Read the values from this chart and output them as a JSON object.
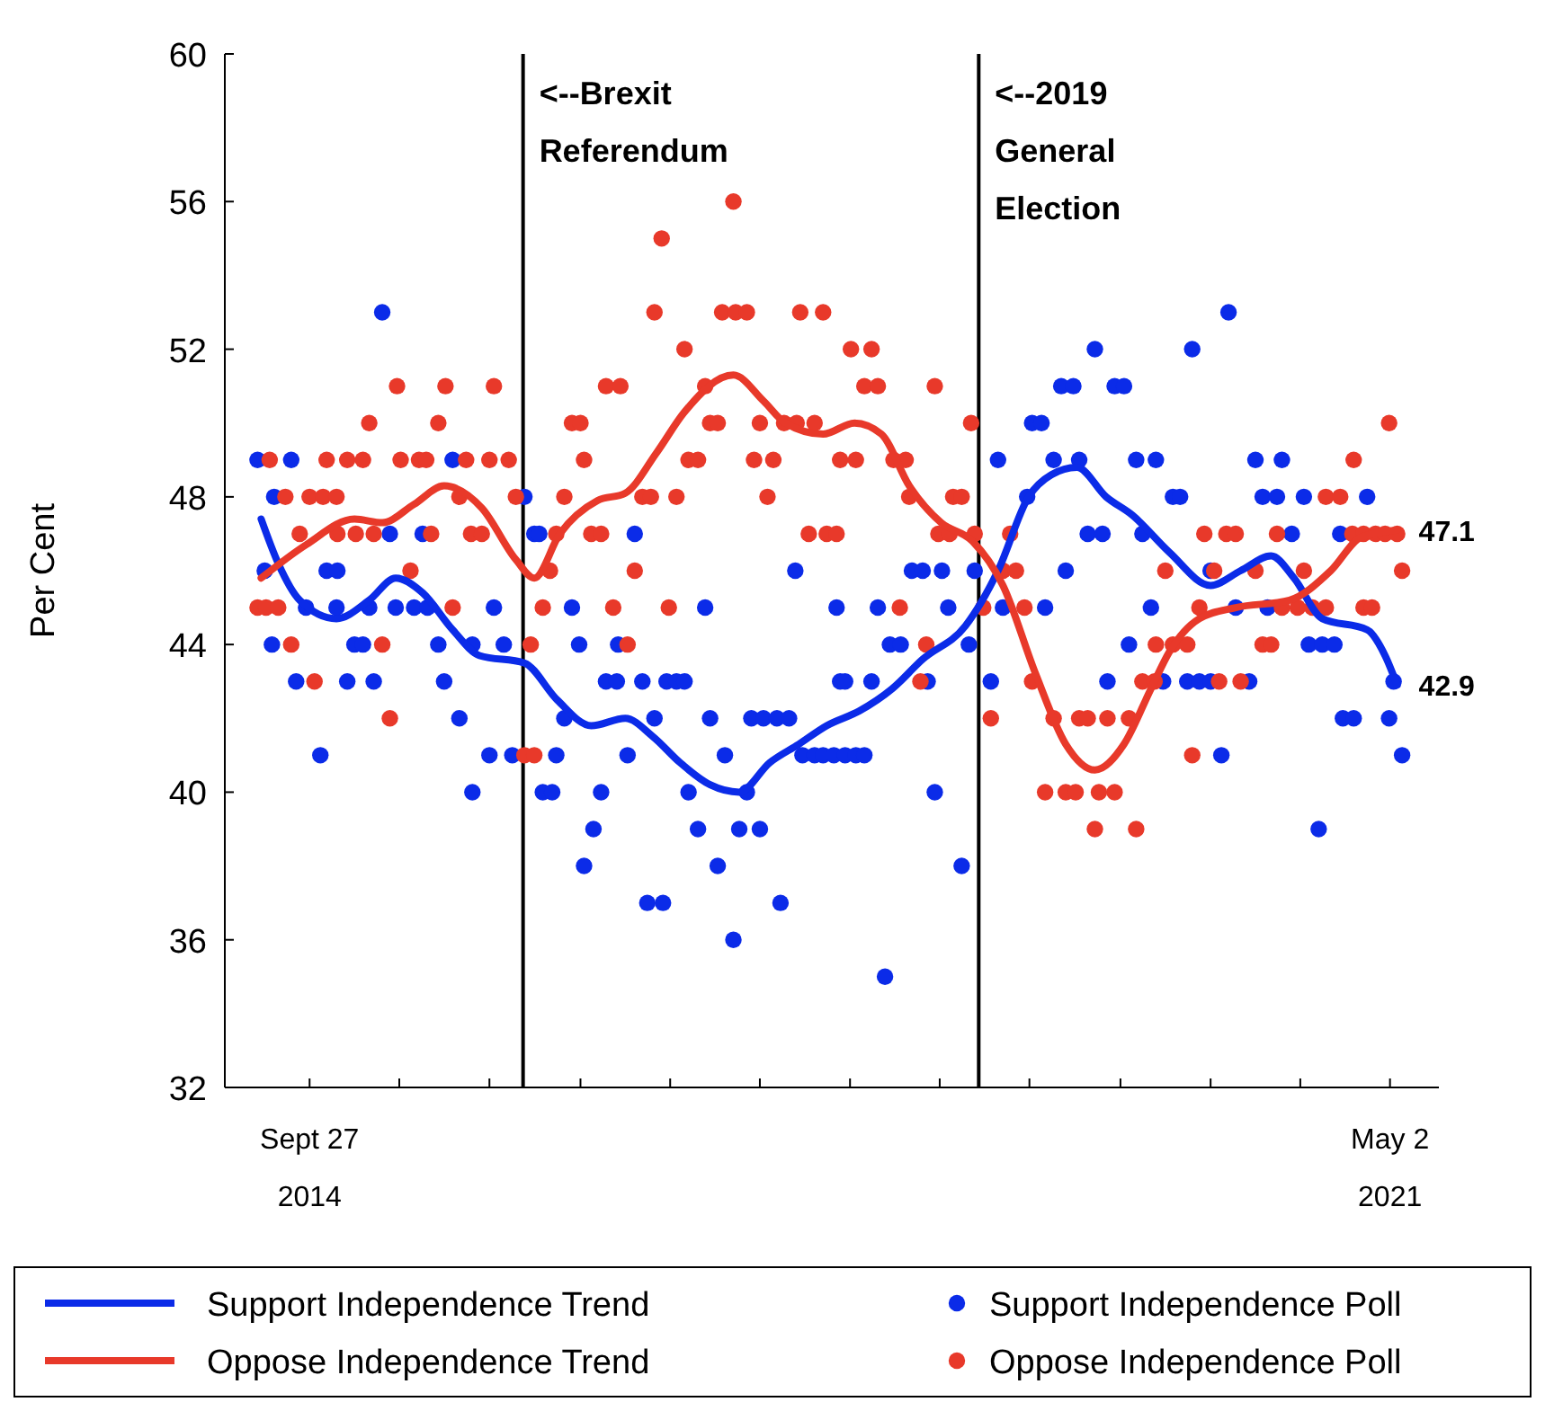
{
  "chart_data": {
    "type": "scatter",
    "ylabel": "Per Cent",
    "xlim": [
      "2014-03-22",
      "2021-08-19"
    ],
    "ylim": [
      32,
      60
    ],
    "yticks": [
      32,
      36,
      40,
      44,
      48,
      52,
      56,
      60
    ],
    "xticks": [
      {
        "value": "2014-09-27",
        "label": "Sept 27 2014"
      },
      {
        "value": "2015-04-15",
        "label": null
      },
      {
        "value": "2015-11-02",
        "label": null
      },
      {
        "value": "2016-05-23",
        "label": null
      },
      {
        "value": "2016-12-09",
        "label": null
      },
      {
        "value": "2017-06-27",
        "label": null
      },
      {
        "value": "2018-01-14",
        "label": null
      },
      {
        "value": "2018-08-02",
        "label": null
      },
      {
        "value": "2019-02-18",
        "label": null
      },
      {
        "value": "2019-09-09",
        "label": null
      },
      {
        "value": "2020-03-28",
        "label": null
      },
      {
        "value": "2020-10-14",
        "label": null
      },
      {
        "value": "2021-05-02",
        "label": "May 2 2021"
      }
    ],
    "legend": "bottom",
    "ref_lines": [
      {
        "axis": "x",
        "value": "2016-01-16",
        "label": "<--Brexit Referendum",
        "color": "#000000"
      },
      {
        "axis": "x",
        "value": "2018-10-28",
        "label": "<--2019 General Election",
        "color": "#000000"
      }
    ],
    "annotations": [
      {
        "text": "47.1",
        "x": "2021-05-18",
        "y": 47.1
      },
      {
        "text": "42.9",
        "x": "2021-05-18",
        "y": 42.9
      }
    ],
    "series": [
      {
        "name": "Support Independence Trend",
        "type": "line",
        "color": "#0b2be8",
        "line_style": "solid",
        "x": [
          "2014-06-11",
          "2014-07-19",
          "2014-09-05",
          "2014-11-26",
          "2015-02-07",
          "2015-04-07",
          "2015-06-06",
          "2015-08-12",
          "2015-10-11",
          "2016-01-19",
          "2016-04-01",
          "2016-06-16",
          "2016-08-31",
          "2016-11-01",
          "2016-12-31",
          "2017-03-08",
          "2017-05-12",
          "2017-07-19",
          "2017-09-22",
          "2017-11-23",
          "2018-02-04",
          "2018-04-18",
          "2018-06-25",
          "2018-09-28",
          "2018-12-10",
          "2019-02-16",
          "2019-04-08",
          "2019-06-04",
          "2019-08-08",
          "2019-10-06",
          "2019-12-27",
          "2020-03-28",
          "2020-06-03",
          "2020-08-10",
          "2020-09-30",
          "2020-12-02",
          "2021-03-12",
          "2021-04-21",
          "2021-05-18"
        ],
        "values": [
          47.4,
          46.2,
          45.2,
          44.7,
          45.2,
          45.8,
          45.4,
          44.4,
          43.7,
          43.5,
          42.5,
          41.8,
          42.0,
          41.5,
          40.8,
          40.2,
          40.0,
          40.8,
          41.3,
          41.8,
          42.2,
          42.8,
          43.6,
          44.5,
          46.0,
          48.0,
          48.6,
          48.8,
          48.0,
          47.5,
          46.5,
          45.6,
          46.0,
          46.4,
          45.8,
          44.7,
          44.4,
          43.7,
          42.9
        ]
      },
      {
        "name": "Oppose Independence Trend",
        "type": "line",
        "color": "#e8392a",
        "line_style": "solid",
        "x": [
          "2014-06-11",
          "2014-09-19",
          "2015-01-05",
          "2015-03-08",
          "2015-05-18",
          "2015-07-24",
          "2015-10-16",
          "2015-12-31",
          "2016-02-10",
          "2016-04-07",
          "2016-06-30",
          "2016-08-31",
          "2016-11-09",
          "2017-01-10",
          "2017-04-29",
          "2017-07-05",
          "2017-08-23",
          "2017-11-15",
          "2018-01-24",
          "2018-03-25",
          "2018-05-26",
          "2018-08-05",
          "2018-10-14",
          "2018-12-21",
          "2019-03-04",
          "2019-05-10",
          "2019-07-14",
          "2019-09-17",
          "2019-11-16",
          "2019-12-27",
          "2020-03-03",
          "2020-05-23",
          "2020-09-20",
          "2020-12-21",
          "2021-02-26",
          "2021-05-18"
        ],
        "values": [
          45.8,
          46.7,
          47.4,
          47.3,
          47.8,
          48.3,
          47.7,
          46.3,
          45.8,
          47.0,
          47.9,
          48.1,
          49.2,
          50.3,
          51.3,
          50.6,
          50.0,
          49.7,
          50.0,
          49.7,
          48.3,
          47.3,
          46.8,
          45.6,
          43.2,
          41.3,
          40.6,
          41.3,
          42.8,
          43.8,
          44.7,
          45.0,
          45.2,
          46.0,
          46.9,
          47.1
        ]
      },
      {
        "name": "Support Independence Poll",
        "type": "scatter",
        "marker": "circle",
        "color": "#0b2be8",
        "x": [
          "2015-03-08",
          "2014-06-03",
          "2014-08-17",
          "2015-08-12",
          "2014-07-10",
          "2016-01-19",
          "2015-03-25",
          "2015-06-06",
          "2014-06-19",
          "2014-11-04",
          "2014-11-28",
          "2014-09-19",
          "2014-11-26",
          "2015-02-07",
          "2015-04-07",
          "2015-05-18",
          "2015-06-17",
          "2015-11-12",
          "2014-07-05",
          "2015-01-05",
          "2015-01-24",
          "2015-07-11",
          "2015-09-25",
          "2015-12-04",
          "2014-08-28",
          "2014-12-20",
          "2015-02-17",
          "2015-07-24",
          "2015-08-27",
          "2014-10-21",
          "2015-11-02",
          "2015-12-23",
          "2015-09-25",
          "2016-02-10",
          "2016-02-21",
          "2016-09-21",
          "2017-09-14",
          "2016-05-04",
          "2017-02-25",
          "2017-12-15",
          "2016-05-20",
          "2016-08-15",
          "2016-07-19",
          "2016-08-12",
          "2016-10-08",
          "2016-12-01",
          "2016-12-23",
          "2017-01-10",
          "2017-12-23",
          "2016-04-17",
          "2016-11-04",
          "2017-03-08",
          "2017-06-08",
          "2017-07-05",
          "2017-08-04",
          "2017-08-31",
          "2016-03-30",
          "2016-09-05",
          "2017-04-10",
          "2017-09-30",
          "2017-10-27",
          "2017-11-15",
          "2017-12-09",
          "2016-02-29",
          "2016-03-21",
          "2016-07-08",
          "2017-01-19",
          "2017-05-29",
          "2016-06-21",
          "2017-02-09",
          "2017-05-12",
          "2017-06-27",
          "2016-05-31",
          "2017-03-25",
          "2016-10-19",
          "2016-11-23",
          "2017-08-12",
          "2017-04-29",
          "2019-07-14",
          "2019-04-30",
          "2019-05-27",
          "2019-08-27",
          "2019-09-17",
          "2019-02-24",
          "2019-03-17",
          "2018-12-10",
          "2019-04-13",
          "2019-06-09",
          "2019-10-14",
          "2019-02-13",
          "2019-06-28",
          "2019-07-31",
          "2019-10-28",
          "2018-06-01",
          "2018-06-25",
          "2018-08-07",
          "2018-10-19",
          "2019-05-10",
          "2018-03-17",
          "2018-08-21",
          "2018-12-21",
          "2019-03-25",
          "2018-04-13",
          "2018-05-07",
          "2018-10-06",
          "2019-09-28",
          "2018-01-03",
          "2018-03-03",
          "2018-07-06",
          "2018-11-24",
          "2019-08-11",
          "2018-01-03",
          "2018-01-27",
          "2018-02-15",
          "2018-07-22",
          "2018-09-20",
          "2018-04-02",
          "2020-05-07",
          "2020-02-16",
          "2019-11-27",
          "2020-07-06",
          "2020-09-03",
          "2020-01-04",
          "2020-01-20",
          "2020-07-22",
          "2020-08-23",
          "2020-10-22",
          "2021-03-12",
          "2020-09-25",
          "2021-01-11",
          "2020-03-28",
          "2019-11-16",
          "2020-05-23",
          "2020-08-02",
          "2020-11-02",
          "2020-12-02",
          "2020-12-29",
          "2019-12-13",
          "2020-02-05",
          "2020-03-03",
          "2020-03-28",
          "2020-06-22",
          "2021-05-10",
          "2021-01-17",
          "2021-02-10",
          "2021-04-30",
          "2020-04-21",
          "2021-05-29",
          "2020-11-24"
        ],
        "values": [
          53,
          49,
          49,
          49,
          48,
          48,
          47,
          47,
          46,
          46,
          46,
          45,
          45,
          45,
          45,
          45,
          45,
          45,
          44,
          44,
          44,
          44,
          44,
          44,
          43,
          43,
          43,
          43,
          42,
          41,
          41,
          41,
          40,
          47,
          47,
          47,
          46,
          45,
          45,
          45,
          44,
          44,
          43,
          43,
          43,
          43,
          43,
          43,
          43,
          42,
          42,
          42,
          42,
          42,
          42,
          42,
          41,
          41,
          41,
          41,
          41,
          41,
          41,
          40,
          40,
          40,
          40,
          40,
          39,
          39,
          39,
          39,
          38,
          38,
          37,
          37,
          37,
          36,
          52,
          51,
          51,
          51,
          51,
          50,
          50,
          49,
          49,
          49,
          49,
          48,
          47,
          47,
          47,
          46,
          46,
          46,
          46,
          46,
          45,
          45,
          45,
          45,
          44,
          44,
          44,
          44,
          43,
          43,
          43,
          43,
          43,
          41,
          41,
          41,
          40,
          38,
          35,
          53,
          52,
          49,
          49,
          49,
          48,
          48,
          48,
          48,
          48,
          48,
          47,
          47,
          46,
          45,
          45,
          45,
          44,
          44,
          44,
          43,
          43,
          43,
          43,
          43,
          43,
          42,
          42,
          42,
          41,
          41,
          39
        ]
      },
      {
        "name": "Oppose Independence Poll",
        "type": "scatter",
        "marker": "circle",
        "color": "#e8392a",
        "x": [
          "2015-04-10",
          "2015-07-27",
          "2015-11-12",
          "2015-02-07",
          "2015-07-11",
          "2014-06-30",
          "2014-11-04",
          "2014-12-20",
          "2015-01-24",
          "2015-04-18",
          "2015-05-29",
          "2015-06-14",
          "2015-09-11",
          "2015-11-02",
          "2015-12-15",
          "2014-08-04",
          "2014-09-27",
          "2014-10-27",
          "2014-11-26",
          "2015-08-27",
          "2015-12-31",
          "2014-09-05",
          "2014-11-28",
          "2015-01-08",
          "2015-02-17",
          "2015-06-25",
          "2015-09-22",
          "2015-10-16",
          "2015-05-10",
          "2014-06-03",
          "2014-06-22",
          "2014-07-19",
          "2015-08-12",
          "2014-08-17",
          "2015-03-08",
          "2014-10-08",
          "2015-03-25",
          "2016-01-19",
          "2016-02-10",
          "2017-04-29",
          "2016-11-20",
          "2016-11-04",
          "2017-04-04",
          "2017-05-04",
          "2017-05-29",
          "2017-09-25",
          "2017-11-15",
          "2017-01-10",
          "2018-01-16",
          "2018-03-03",
          "2016-07-19",
          "2016-08-20",
          "2017-02-25",
          "2018-02-15",
          "2018-03-17",
          "2018-07-22",
          "2016-05-04",
          "2016-05-23",
          "2017-03-08",
          "2017-03-25",
          "2017-06-27",
          "2017-08-20",
          "2017-09-17",
          "2017-10-27",
          "2018-10-11",
          "2016-05-31",
          "2017-01-19",
          "2017-02-09",
          "2017-06-14",
          "2017-07-27",
          "2017-12-23",
          "2018-01-27",
          "2018-04-21",
          "2018-05-18",
          "2016-04-17",
          "2016-10-08",
          "2016-10-27",
          "2016-12-23",
          "2017-07-14",
          "2018-05-26",
          "2018-09-01",
          "2018-09-20",
          "2016-03-30",
          "2016-06-16",
          "2016-07-08",
          "2017-10-14",
          "2017-11-23",
          "2017-12-15",
          "2018-07-30",
          "2018-08-24",
          "2018-10-19",
          "2019-01-06",
          "2016-03-16",
          "2016-09-21",
          "2018-12-21",
          "2019-01-19",
          "2016-02-29",
          "2016-08-04",
          "2016-12-06",
          "2018-05-05",
          "2018-11-07",
          "2019-02-07",
          "2016-02-02",
          "2016-09-05",
          "2018-07-03",
          "2018-06-20",
          "2019-02-24",
          "2019-10-28",
          "2018-11-24",
          "2019-04-13",
          "2019-06-09",
          "2019-06-28",
          "2019-08-11",
          "2019-09-28",
          "2019-03-25",
          "2019-05-10",
          "2019-06-01",
          "2019-07-23",
          "2019-08-27",
          "2019-07-14",
          "2019-10-14",
          "2021-04-30",
          "2021-02-10",
          "2020-12-10",
          "2021-01-11",
          "2020-03-14",
          "2020-05-02",
          "2020-05-23",
          "2020-08-23",
          "2021-02-07",
          "2021-03-04",
          "2021-03-31",
          "2021-04-21",
          "2021-05-18",
          "2019-12-18",
          "2020-04-05",
          "2020-07-06",
          "2020-10-22",
          "2021-05-29",
          "2020-03-03",
          "2020-09-03",
          "2020-10-08",
          "2020-11-10",
          "2020-12-10",
          "2021-03-04",
          "2021-03-23",
          "2019-11-27",
          "2020-01-04",
          "2020-02-05",
          "2020-07-22",
          "2020-08-10",
          "2019-11-24",
          "2020-04-16",
          "2020-06-03",
          "2020-02-16"
        ],
        "values": [
          51,
          51,
          51,
          50,
          50,
          49,
          49,
          49,
          49,
          49,
          49,
          49,
          49,
          49,
          49,
          48,
          48,
          48,
          48,
          48,
          48,
          47,
          47,
          47,
          47,
          47,
          47,
          47,
          46,
          45,
          45,
          45,
          45,
          44,
          44,
          43,
          42,
          41,
          41,
          56,
          55,
          53,
          53,
          53,
          53,
          53,
          53,
          52,
          52,
          52,
          51,
          51,
          51,
          51,
          51,
          51,
          50,
          50,
          50,
          50,
          50,
          50,
          50,
          50,
          50,
          49,
          49,
          49,
          49,
          49,
          49,
          49,
          49,
          49,
          48,
          48,
          48,
          48,
          48,
          48,
          48,
          48,
          47,
          47,
          47,
          47,
          47,
          47,
          47,
          47,
          47,
          47,
          46,
          46,
          46,
          46,
          45,
          45,
          45,
          45,
          45,
          45,
          44,
          44,
          44,
          43,
          43,
          43,
          42,
          42,
          42,
          42,
          42,
          42,
          40,
          40,
          40,
          40,
          40,
          39,
          39,
          50,
          49,
          48,
          48,
          47,
          47,
          47,
          47,
          47,
          47,
          47,
          47,
          47,
          46,
          46,
          46,
          46,
          46,
          45,
          45,
          45,
          45,
          45,
          45,
          45,
          44,
          44,
          44,
          44,
          44,
          43,
          43,
          43,
          41
        ]
      }
    ]
  }
}
